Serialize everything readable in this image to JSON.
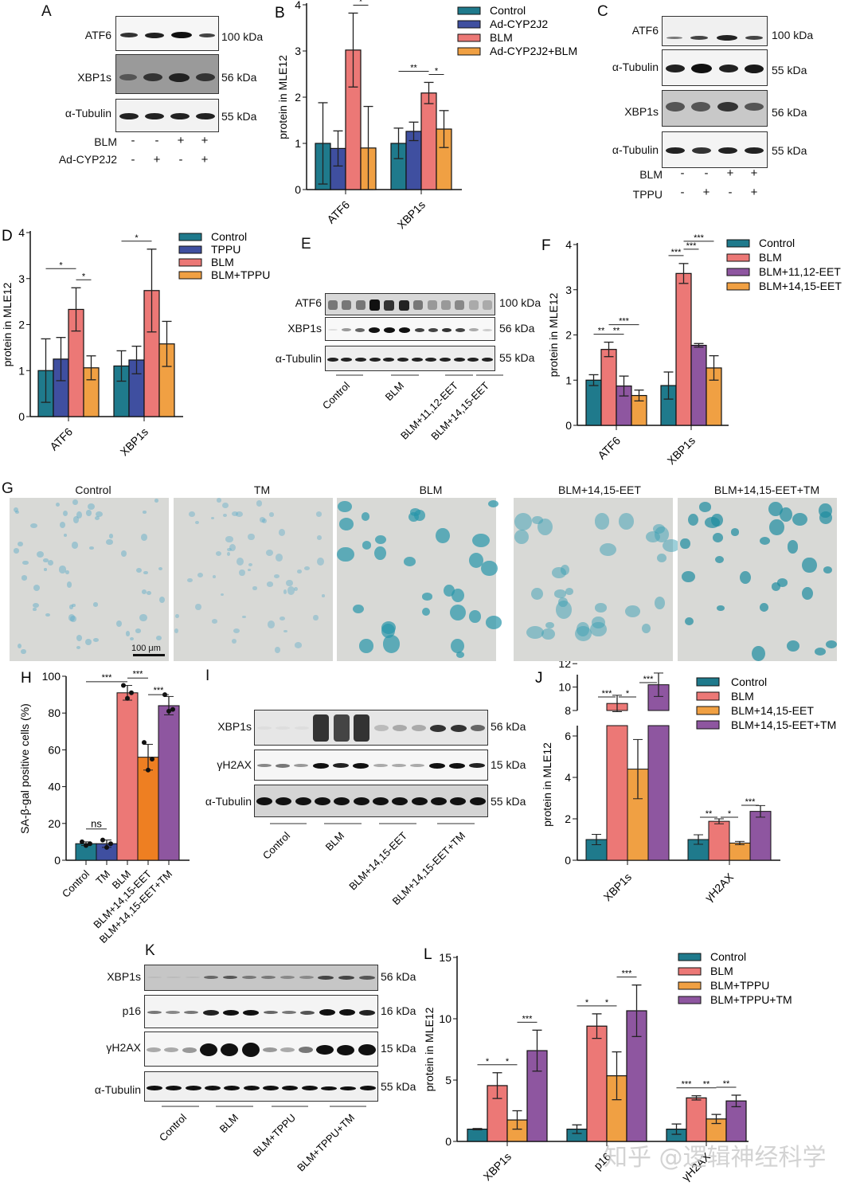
{
  "colors": {
    "control": "#1f7a8c",
    "blue": "#3f4fa0",
    "blm": "#ec7876",
    "orange": "#f0a043",
    "orange_dark": "#ee7f22",
    "purple": "#8e56a0"
  },
  "panel_a": {
    "label": "A",
    "rows": [
      {
        "name": "ATF6",
        "kda": "100 kDa"
      },
      {
        "name": "XBP1s",
        "kda": "56 kDa"
      },
      {
        "name": "α-Tubulin",
        "kda": "55 kDa"
      }
    ],
    "treatments": [
      {
        "name": "BLM",
        "signs": [
          "-",
          "-",
          "+",
          "+"
        ]
      },
      {
        "name": "Ad-CYP2J2",
        "signs": [
          "-",
          "+",
          "-",
          "+"
        ]
      }
    ]
  },
  "panel_c": {
    "label": "C",
    "rows": [
      {
        "name": "ATF6",
        "kda": "100 kDa"
      },
      {
        "name": "α-Tubulin",
        "kda": "55 kDa"
      },
      {
        "name": "XBP1s",
        "kda": "56 kDa"
      },
      {
        "name": "α-Tubulin",
        "kda": "55 kDa"
      }
    ],
    "treatments": [
      {
        "name": "BLM",
        "signs": [
          "-",
          "-",
          "+",
          "+"
        ]
      },
      {
        "name": "TPPU",
        "signs": [
          "-",
          "+",
          "-",
          "+"
        ]
      }
    ]
  },
  "panel_e": {
    "label": "E",
    "rows": [
      {
        "name": "ATF6",
        "kda": "100 kDa"
      },
      {
        "name": "XBP1s",
        "kda": "56 kDa"
      },
      {
        "name": "α-Tubulin",
        "kda": "55 kDa"
      }
    ],
    "groups": [
      "Control",
      "BLM",
      "BLM+11,12-EET",
      "BLM+14,15-EET"
    ]
  },
  "panel_g": {
    "label": "G",
    "images": [
      "Control",
      "TM",
      "BLM",
      "BLM+14,15-EET",
      "BLM+14,15-EET+TM"
    ],
    "scale_bar": "100 μm"
  },
  "panel_i": {
    "label": "I",
    "rows": [
      {
        "name": "XBP1s",
        "kda": "56 kDa"
      },
      {
        "name": "γH2AX",
        "kda": "15 kDa"
      },
      {
        "name": "α-Tubulin",
        "kda": "55 kDa"
      }
    ],
    "groups": [
      "Control",
      "BLM",
      "BLM+14,15-EET",
      "BLM+14,15-EET+TM"
    ]
  },
  "panel_k": {
    "label": "K",
    "rows": [
      {
        "name": "XBP1s",
        "kda": "56 kDa"
      },
      {
        "name": "p16",
        "kda": "16 kDa"
      },
      {
        "name": "γH2AX",
        "kda": "15 kDa"
      },
      {
        "name": "α-Tubulin",
        "kda": "55 kDa"
      }
    ],
    "groups": [
      "Control",
      "BLM",
      "BLM+TPPU",
      "BLM+TPPU+TM"
    ]
  },
  "watermark": "知乎 @逻辑神经科学",
  "chart_data": [
    {
      "panel": "B",
      "type": "bar",
      "categories": [
        "ATF6",
        "XBP1s"
      ],
      "ylabel": "protein in MLE12",
      "ylim": [
        0,
        4
      ],
      "yticks": [
        0,
        1,
        2,
        3,
        4
      ],
      "series": [
        {
          "name": "Control",
          "values": [
            1.0,
            1.0
          ],
          "err": [
            0.88,
            0.33
          ]
        },
        {
          "name": "Ad-CYP2J2",
          "values": [
            0.89,
            1.26
          ],
          "err": [
            0.38,
            0.2
          ]
        },
        {
          "name": "BLM",
          "values": [
            3.02,
            2.09
          ],
          "err": [
            0.8,
            0.23
          ]
        },
        {
          "name": "Ad-CYP2J2+BLM",
          "values": [
            0.9,
            1.31
          ],
          "err": [
            0.9,
            0.4
          ]
        }
      ],
      "annotations": [
        {
          "cat": 0,
          "from": 0,
          "to": 2,
          "text": "*"
        },
        {
          "cat": 0,
          "from": 2,
          "to": 3,
          "text": "*"
        },
        {
          "cat": 1,
          "from": 0,
          "to": 2,
          "text": "**"
        },
        {
          "cat": 1,
          "from": 2,
          "to": 3,
          "text": "*"
        }
      ]
    },
    {
      "panel": "D",
      "type": "bar",
      "categories": [
        "ATF6",
        "XBP1s"
      ],
      "ylabel": "protein in MLE12",
      "ylim": [
        0,
        4
      ],
      "yticks": [
        0,
        1,
        2,
        3,
        4
      ],
      "series": [
        {
          "name": "Control",
          "values": [
            1.0,
            1.1
          ],
          "err": [
            0.69,
            0.33
          ]
        },
        {
          "name": "TPPU",
          "values": [
            1.25,
            1.23
          ],
          "err": [
            0.47,
            0.3
          ]
        },
        {
          "name": "BLM",
          "values": [
            2.33,
            2.74
          ],
          "err": [
            0.47,
            0.9
          ]
        },
        {
          "name": "BLM+TPPU",
          "values": [
            1.06,
            1.58
          ],
          "err": [
            0.26,
            0.49
          ]
        }
      ],
      "annotations": [
        {
          "cat": 0,
          "from": 0,
          "to": 2,
          "text": "*"
        },
        {
          "cat": 0,
          "from": 2,
          "to": 3,
          "text": "*"
        },
        {
          "cat": 1,
          "from": 0,
          "to": 2,
          "text": "*"
        }
      ]
    },
    {
      "panel": "F",
      "type": "bar",
      "categories": [
        "ATF6",
        "XBP1s"
      ],
      "ylabel": "protein in MLE12",
      "ylim": [
        0,
        4
      ],
      "yticks": [
        0,
        1,
        2,
        3,
        4
      ],
      "series": [
        {
          "name": "Control",
          "values": [
            1.0,
            0.88
          ],
          "err": [
            0.12,
            0.3
          ]
        },
        {
          "name": "BLM",
          "values": [
            1.68,
            3.36
          ],
          "err": [
            0.16,
            0.22
          ]
        },
        {
          "name": "BLM+11,12-EET",
          "values": [
            0.87,
            1.77
          ],
          "err": [
            0.22,
            0.04
          ]
        },
        {
          "name": "BLM+14,15-EET",
          "values": [
            0.66,
            1.27
          ],
          "err": [
            0.12,
            0.27
          ]
        }
      ],
      "annotations": [
        {
          "cat": 0,
          "from": 0,
          "to": 1,
          "text": "**"
        },
        {
          "cat": 0,
          "from": 1,
          "to": 2,
          "text": "**"
        },
        {
          "cat": 0,
          "from": 1,
          "to": 3,
          "text": "***"
        },
        {
          "cat": 1,
          "from": 0,
          "to": 1,
          "text": "***"
        },
        {
          "cat": 1,
          "from": 1,
          "to": 2,
          "text": "***"
        },
        {
          "cat": 1,
          "from": 1,
          "to": 3,
          "text": "***"
        }
      ]
    },
    {
      "panel": "H",
      "type": "bar",
      "categories": [
        "Control",
        "TM",
        "BLM",
        "BLM+14,15-EET",
        "BLM+14,15-EET+TM"
      ],
      "ylabel": "SA-β-gal positive cells (%)",
      "ylim": [
        0,
        100
      ],
      "yticks": [
        0,
        20,
        40,
        60,
        80,
        100
      ],
      "values": [
        9,
        9,
        91,
        56,
        84
      ],
      "err": [
        1,
        2,
        4,
        7,
        5
      ],
      "points": [
        [
          10,
          8,
          9
        ],
        [
          11,
          7,
          9
        ],
        [
          95,
          88,
          91
        ],
        [
          64,
          49,
          55
        ],
        [
          90,
          81,
          82
        ]
      ],
      "annotations": [
        {
          "from": 0,
          "to": 1,
          "text": "ns"
        },
        {
          "from": 0,
          "to": 2,
          "text": "***"
        },
        {
          "from": 2,
          "to": 3,
          "text": "***"
        },
        {
          "from": 3,
          "to": 4,
          "text": "***"
        }
      ]
    },
    {
      "panel": "J",
      "type": "bar",
      "categories": [
        "XBP1s",
        "γH2AX"
      ],
      "ylabel": "protein in MLE12",
      "axis_break": [
        6.5,
        8
      ],
      "yticks": [
        0,
        2,
        4,
        6,
        8,
        10,
        12
      ],
      "series": [
        {
          "name": "Control",
          "values": [
            1.0,
            1.0
          ],
          "err": [
            0.25,
            0.23
          ]
        },
        {
          "name": "BLM",
          "values": [
            8.6,
            1.88
          ],
          "err": [
            0.7,
            0.12
          ]
        },
        {
          "name": "BLM+14,15-EET",
          "values": [
            4.4,
            0.83
          ],
          "err": [
            1.43,
            0.08
          ]
        },
        {
          "name": "BLM+14,15-EET+TM",
          "values": [
            10.2,
            2.36
          ],
          "err": [
            1.0,
            0.28
          ]
        }
      ],
      "annotations": [
        {
          "cat": 0,
          "from": 0,
          "to": 1,
          "text": "***"
        },
        {
          "cat": 0,
          "from": 1,
          "to": 2,
          "text": "*"
        },
        {
          "cat": 0,
          "from": 2,
          "to": 3,
          "text": "***"
        },
        {
          "cat": 1,
          "from": 0,
          "to": 1,
          "text": "**"
        },
        {
          "cat": 1,
          "from": 1,
          "to": 2,
          "text": "*"
        },
        {
          "cat": 1,
          "from": 2,
          "to": 3,
          "text": "***"
        }
      ]
    },
    {
      "panel": "L",
      "type": "bar",
      "categories": [
        "XBP1s",
        "p16",
        "γH2AX"
      ],
      "ylabel": "protein in MLE12",
      "ylim": [
        0,
        15
      ],
      "yticks": [
        0,
        5,
        10,
        15
      ],
      "series": [
        {
          "name": "Control",
          "values": [
            1.0,
            1.0,
            1.0
          ],
          "err": [
            0.05,
            0.35,
            0.42
          ]
        },
        {
          "name": "BLM",
          "values": [
            4.55,
            9.4,
            3.55
          ],
          "err": [
            1.05,
            1.0,
            0.17
          ]
        },
        {
          "name": "BLM+TPPU",
          "values": [
            1.75,
            5.35,
            1.83
          ],
          "err": [
            0.75,
            1.95,
            0.37
          ]
        },
        {
          "name": "BLM+TPPU+TM",
          "values": [
            7.4,
            10.65,
            3.3
          ],
          "err": [
            1.67,
            2.1,
            0.47
          ]
        }
      ],
      "annotations": [
        {
          "cat": 0,
          "from": 0,
          "to": 1,
          "text": "*"
        },
        {
          "cat": 0,
          "from": 1,
          "to": 2,
          "text": "*"
        },
        {
          "cat": 0,
          "from": 2,
          "to": 3,
          "text": "***"
        },
        {
          "cat": 1,
          "from": 0,
          "to": 1,
          "text": "*"
        },
        {
          "cat": 1,
          "from": 1,
          "to": 2,
          "text": "*"
        },
        {
          "cat": 1,
          "from": 2,
          "to": 3,
          "text": "***"
        },
        {
          "cat": 2,
          "from": 0,
          "to": 1,
          "text": "***"
        },
        {
          "cat": 2,
          "from": 1,
          "to": 2,
          "text": "**"
        },
        {
          "cat": 2,
          "from": 2,
          "to": 3,
          "text": "**"
        }
      ]
    }
  ]
}
